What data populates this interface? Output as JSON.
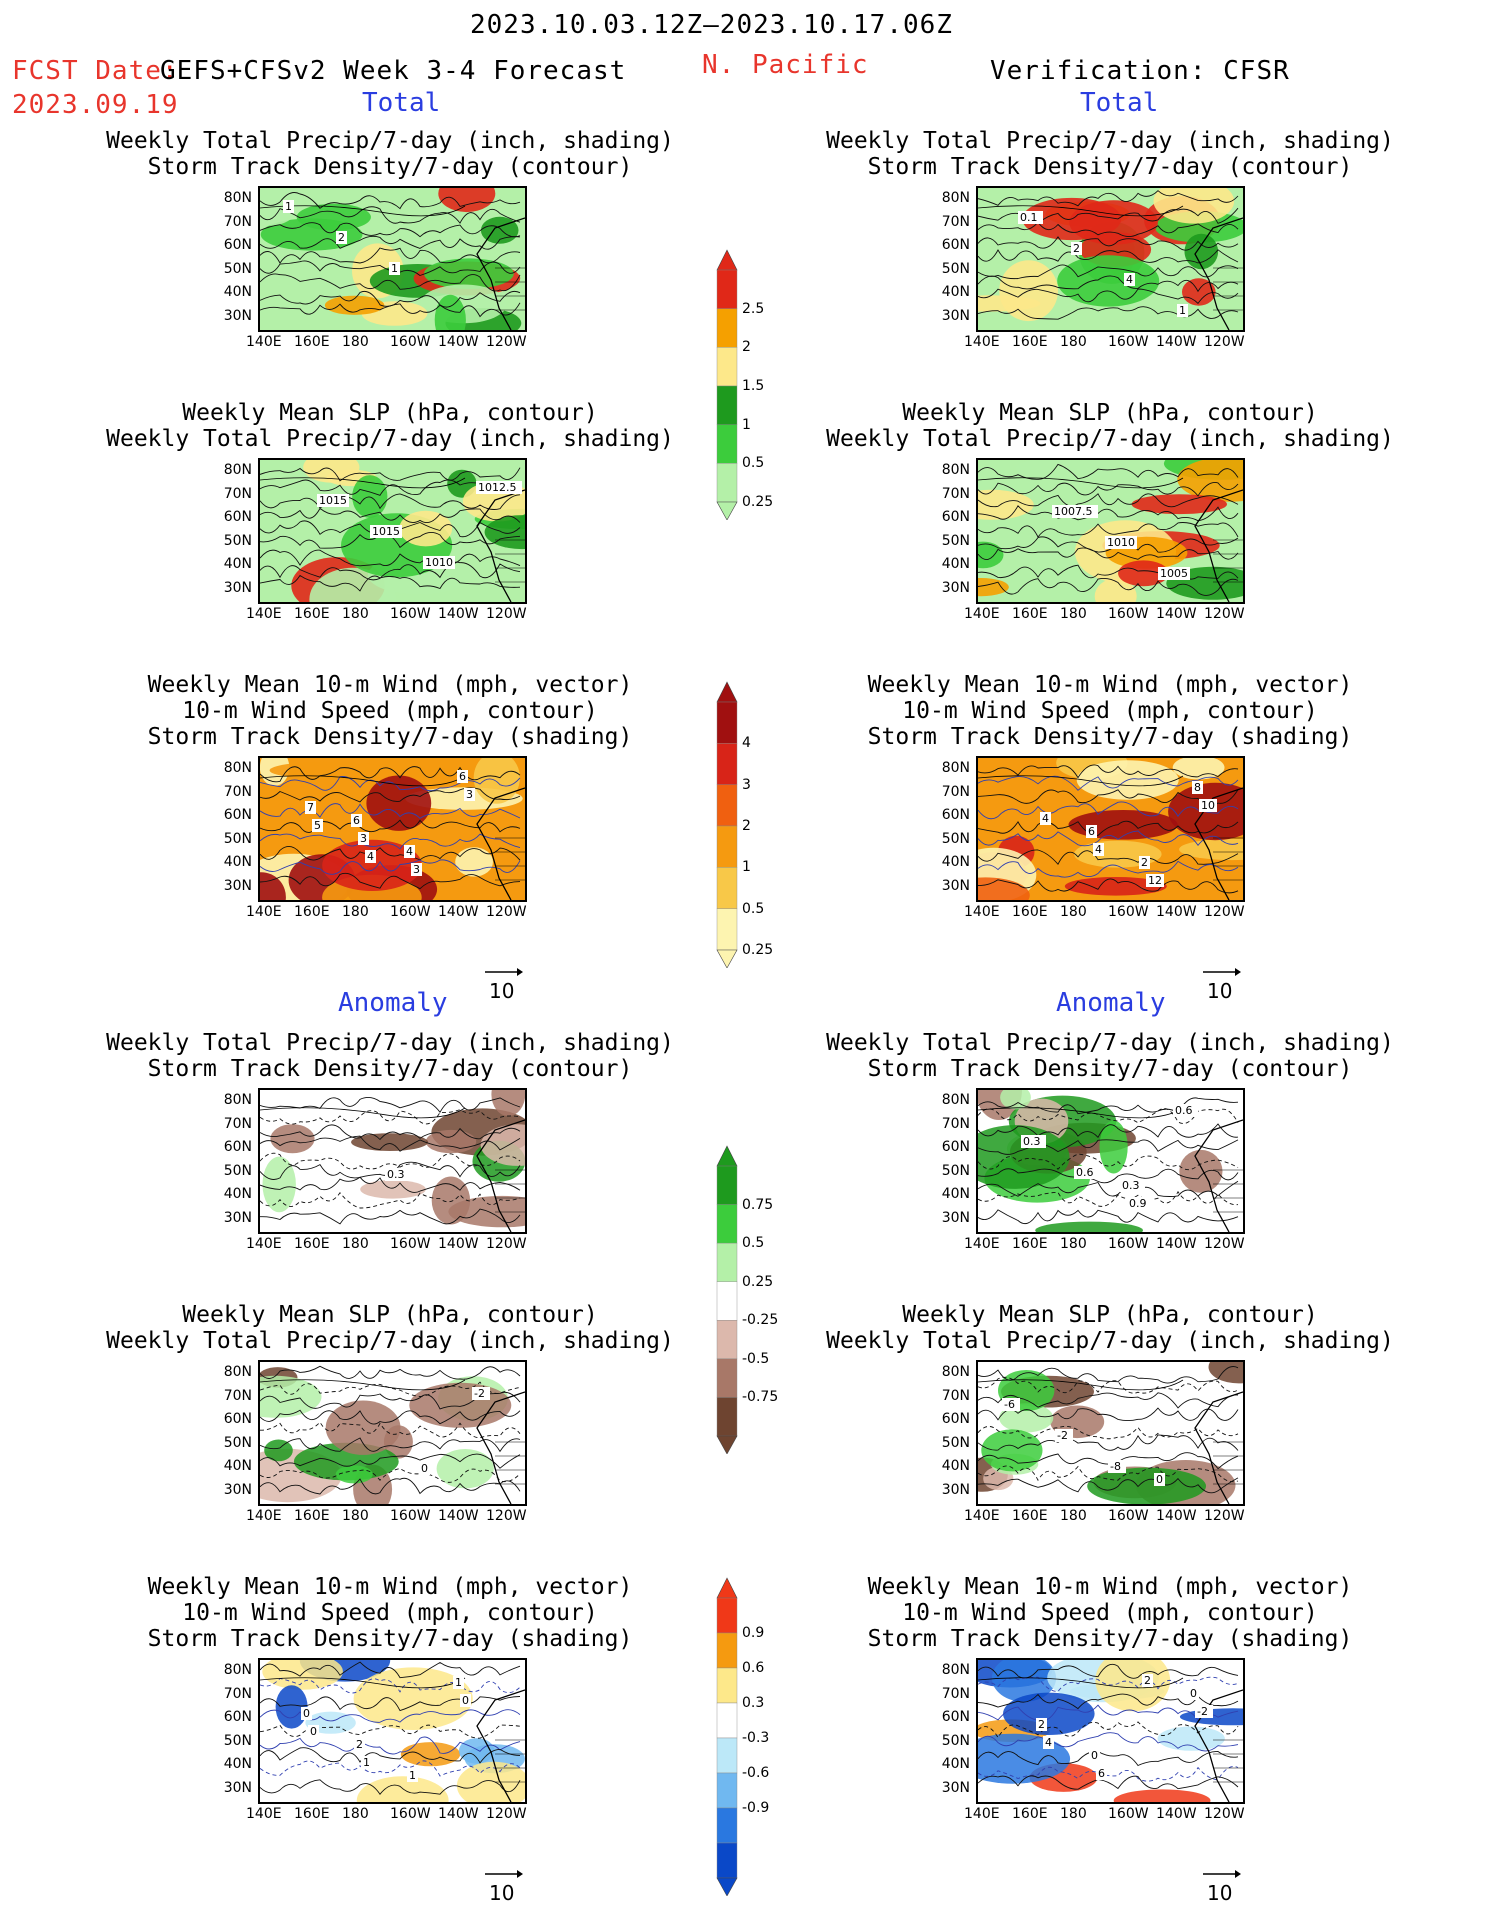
{
  "header": {
    "date_range": "2023.10.03.12Z–2023.10.17.06Z",
    "fcst_label": "FCST Date:",
    "fcst_model": "GEFS+CFSv2 Week 3-4 Forecast",
    "fcst_date": "2023.09.19",
    "region": "N. Pacific",
    "verification": "Verification: CFSR"
  },
  "sections": {
    "total_left": "Total",
    "total_right": "Total",
    "anomaly_left": "Anomaly",
    "anomaly_right": "Anomaly"
  },
  "titles": {
    "precip_std": [
      "Weekly Total Precip/7-day (inch, shading)",
      "Storm Track Density/7-day (contour)"
    ],
    "slp_precip": [
      "Weekly Mean SLP (hPa, contour)",
      "Weekly Total Precip/7-day (inch, shading)"
    ],
    "wind": [
      "Weekly Mean 10-m Wind (mph, vector)",
      "10-m Wind Speed (mph, contour)",
      "Storm Track Density/7-day (shading)"
    ]
  },
  "axes": {
    "lat": [
      "80N",
      "70N",
      "60N",
      "50N",
      "40N",
      "30N"
    ],
    "lon": [
      "140E",
      "160E",
      "180",
      "160W",
      "140W",
      "120W"
    ]
  },
  "vector_ref": "10",
  "colorbars": {
    "precip_total": {
      "labels": [
        "2.5",
        "2",
        "1.5",
        "1",
        "0.5",
        "0.25"
      ],
      "colors": [
        "#e02818",
        "#f5a000",
        "#fde88a",
        "#1e9a1e",
        "#3ccc3c",
        "#b4f0a8"
      ]
    },
    "std_total": {
      "labels": [
        "4",
        "3",
        "2",
        "1",
        "0.5",
        "0.25"
      ],
      "colors": [
        "#a01010",
        "#d82418",
        "#f06010",
        "#f59a10",
        "#f8c848",
        "#fdf4b0"
      ]
    },
    "precip_anom": {
      "labels": [
        "0.75",
        "0.5",
        "0.25",
        "-0.25",
        "-0.5",
        "-0.75"
      ],
      "colors": [
        "#1e9a1e",
        "#3ccc3c",
        "#b4f0a8",
        "#ffffff",
        "#dcb8ac",
        "#a87868",
        "#6e4430"
      ]
    },
    "std_anom": {
      "labels": [
        "0.9",
        "0.6",
        "0.3",
        "-0.3",
        "-0.6",
        "-0.9"
      ],
      "colors": [
        "#f03818",
        "#f59a10",
        "#fde88a",
        "#ffffff",
        "#bce8f8",
        "#70b8f0",
        "#2a78e0",
        "#0a48c8"
      ]
    }
  },
  "panels": [
    {
      "id": "fc-total-precip",
      "side": "left",
      "kind": "precip_total",
      "labels": [
        "1",
        "2",
        "1"
      ]
    },
    {
      "id": "ob-total-precip",
      "side": "right",
      "kind": "precip_total",
      "labels": [
        "0.1",
        "2",
        "4",
        "1"
      ]
    },
    {
      "id": "fc-total-slp",
      "side": "left",
      "kind": "precip_total",
      "labels": [
        "1015",
        "1015",
        "1010",
        "1012.5"
      ]
    },
    {
      "id": "ob-total-slp",
      "side": "right",
      "kind": "precip_total",
      "labels": [
        "1007.5",
        "1010",
        "1005"
      ]
    },
    {
      "id": "fc-total-wind",
      "side": "left",
      "kind": "std_total",
      "labels": [
        "6",
        "4",
        "6",
        "7",
        "3",
        "3",
        "3",
        "5",
        "4"
      ]
    },
    {
      "id": "ob-total-wind",
      "side": "right",
      "kind": "std_total",
      "labels": [
        "6",
        "2",
        "8",
        "4",
        "4",
        "12",
        "10"
      ]
    },
    {
      "id": "fc-anom-precip",
      "side": "left",
      "kind": "precip_anom",
      "labels": [
        "0.3"
      ]
    },
    {
      "id": "ob-anom-precip",
      "side": "right",
      "kind": "precip_anom",
      "labels": [
        "0.3",
        "0.6",
        "0.3",
        "0.6",
        "0.9"
      ]
    },
    {
      "id": "fc-anom-slp",
      "side": "left",
      "kind": "precip_anom",
      "labels": [
        "0",
        "-2"
      ]
    },
    {
      "id": "ob-anom-slp",
      "side": "right",
      "kind": "precip_anom",
      "labels": [
        "0",
        "-6",
        "-2",
        "-8"
      ]
    },
    {
      "id": "fc-anom-wind",
      "side": "left",
      "kind": "std_anom",
      "labels": [
        "1",
        "0",
        "2",
        "1",
        "0",
        "0",
        "1"
      ]
    },
    {
      "id": "ob-anom-wind",
      "side": "right",
      "kind": "std_anom",
      "labels": [
        "0",
        "2",
        "0",
        "2",
        "-2",
        "4",
        "6"
      ]
    }
  ]
}
